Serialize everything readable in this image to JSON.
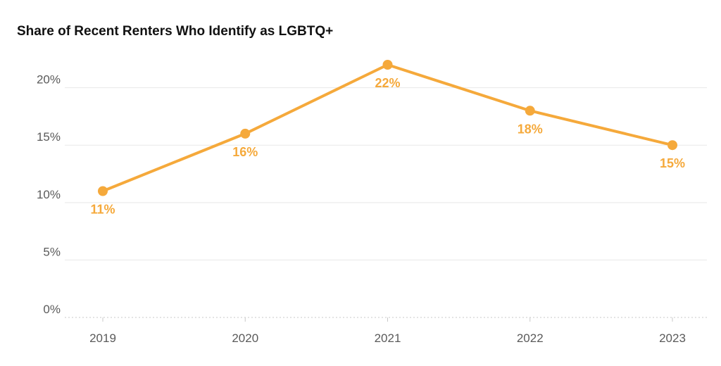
{
  "chart_data": {
    "type": "line",
    "title": "Share of Recent Renters Who Identify as LGBTQ+",
    "xlabel": "",
    "ylabel": "",
    "categories": [
      "2019",
      "2020",
      "2021",
      "2022",
      "2023"
    ],
    "series": [
      {
        "values": [
          11,
          16,
          22,
          18,
          15
        ],
        "data_labels": [
          "11%",
          "16%",
          "22%",
          "18%",
          "15%"
        ]
      }
    ],
    "ylim": [
      0,
      22
    ],
    "yticks": [
      0,
      5,
      10,
      15,
      20
    ],
    "ytick_labels": [
      "0%",
      "5%",
      "10%",
      "15%",
      "20%"
    ],
    "grid": true,
    "legend": "none",
    "colors": {
      "line": "#F5A93B",
      "grid": "#e8e8e8",
      "baseline": "#c8c8c8",
      "tick_text": "#5a5a5a",
      "title_text": "#111111"
    }
  }
}
